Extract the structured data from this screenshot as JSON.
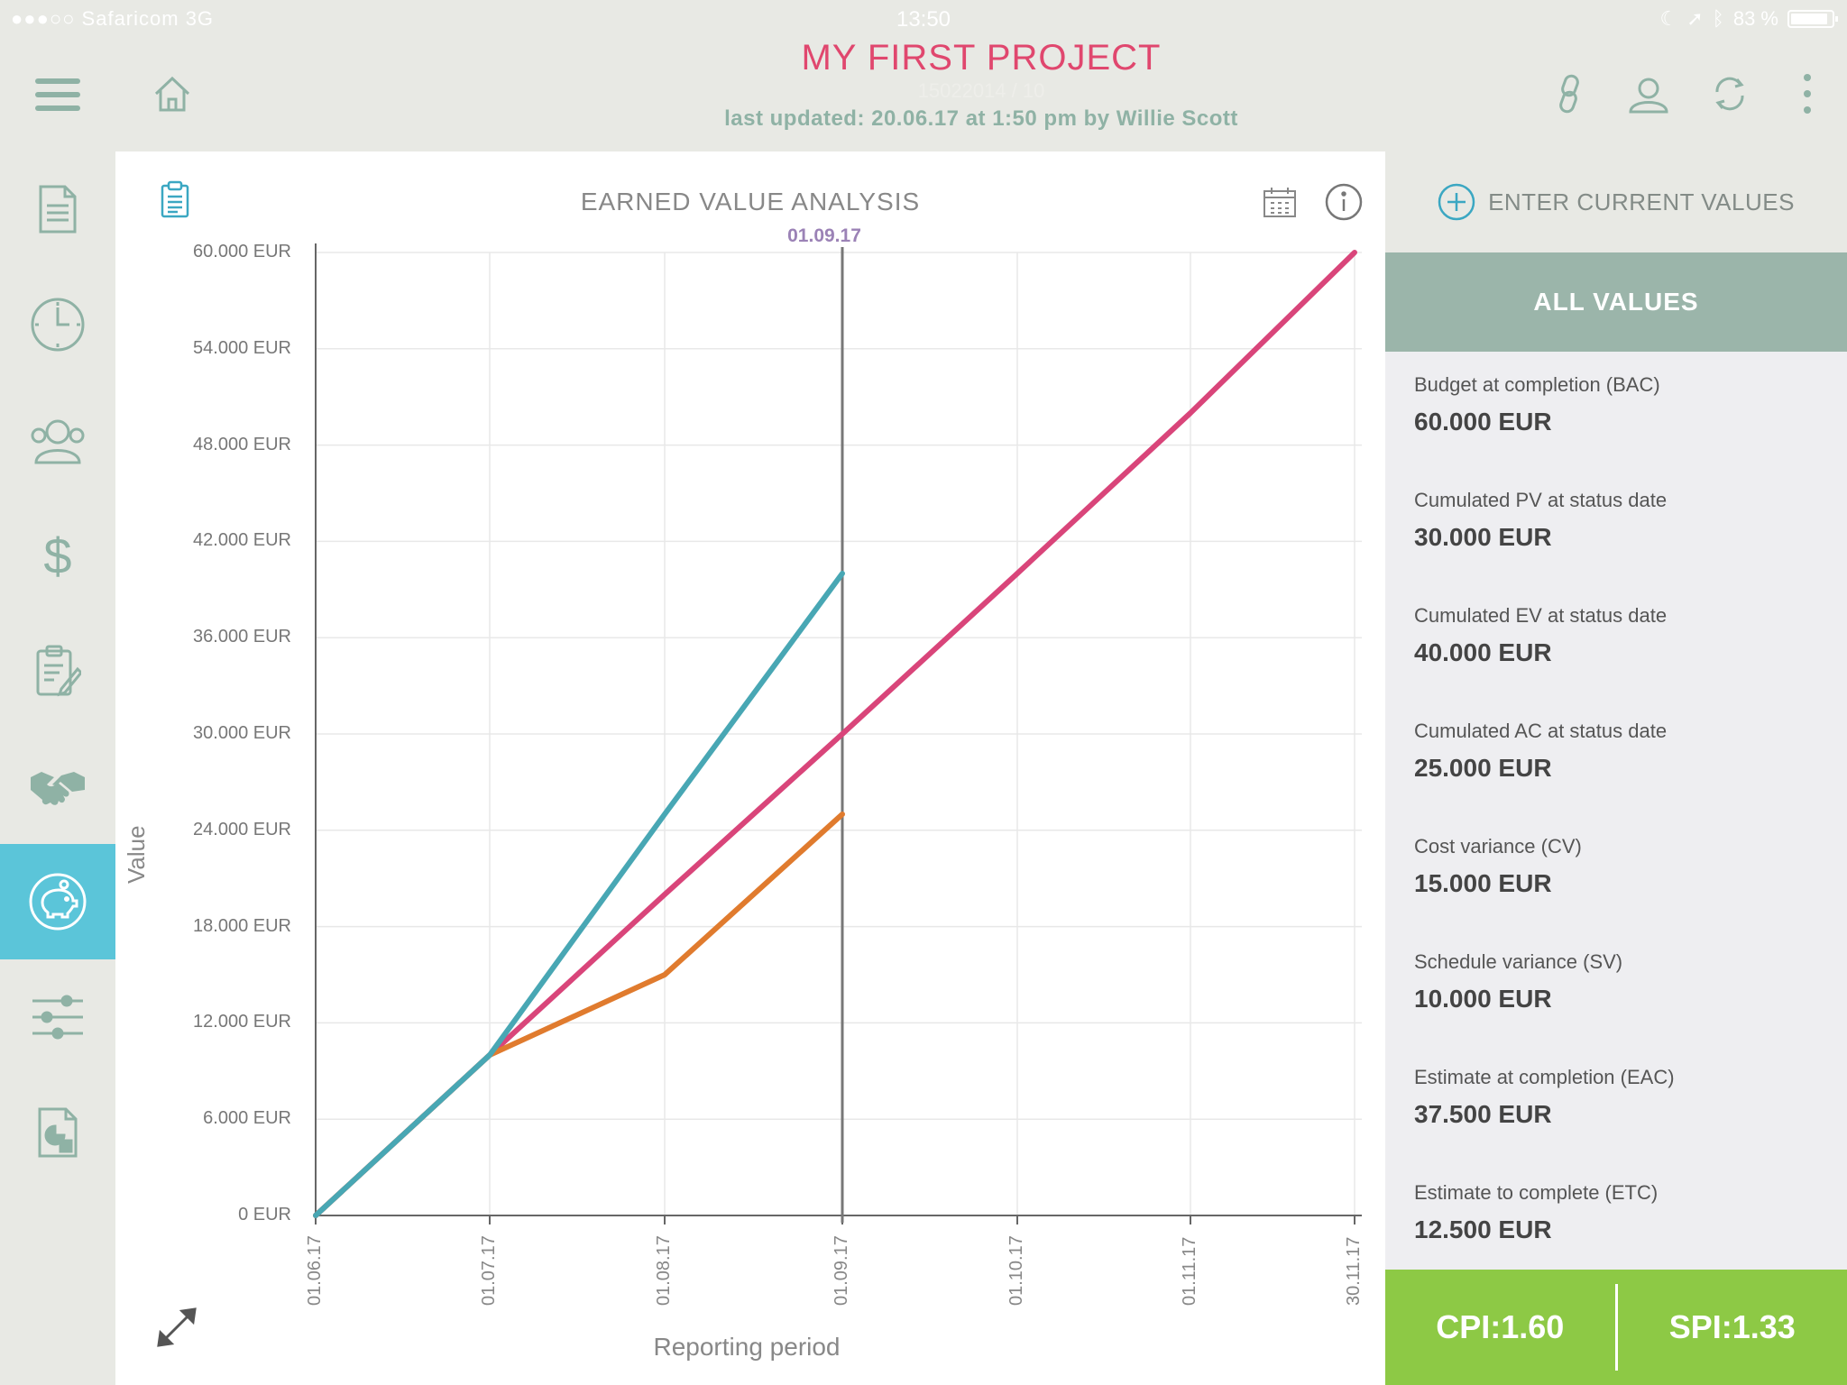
{
  "status_bar": {
    "carrier": "●●●○○ Safaricom  3G",
    "time": "13:50",
    "battery": "83 %"
  },
  "header": {
    "title": "MY FIRST PROJECT",
    "ghost_text": "15022014 / 10",
    "subtitle": "last updated: 20.06.17 at 1:50 pm by Willie Scott"
  },
  "chart_data": {
    "type": "line",
    "title": "EARNED VALUE ANALYSIS",
    "status_date": "01.09.17",
    "xlabel": "Reporting period",
    "ylabel": "Value",
    "ylim": [
      0,
      60000
    ],
    "x_ticks": [
      "01.06.17",
      "01.07.17",
      "01.08.17",
      "01.09.17",
      "01.10.17",
      "01.11.17",
      "30.11.17"
    ],
    "y_ticks": [
      "0 EUR",
      "6.000 EUR",
      "12.000 EUR",
      "18.000 EUR",
      "24.000 EUR",
      "30.000 EUR",
      "36.000 EUR",
      "42.000 EUR",
      "48.000 EUR",
      "54.000 EUR",
      "60.000 EUR"
    ],
    "grid": true,
    "series": [
      {
        "color": "#d9457a",
        "x": [
          "01.06.17",
          "01.07.17",
          "01.08.17",
          "01.09.17",
          "01.10.17",
          "01.11.17",
          "30.11.17"
        ],
        "values": [
          0,
          10000,
          20000,
          30000,
          40000,
          50000,
          60000
        ]
      },
      {
        "color": "#e07b2e",
        "x": [
          "01.06.17",
          "01.07.17",
          "01.08.17",
          "01.09.17"
        ],
        "values": [
          0,
          10000,
          15000,
          25000
        ]
      },
      {
        "color": "#48a7b4",
        "x": [
          "01.06.17",
          "01.07.17",
          "01.08.17",
          "01.09.17"
        ],
        "values": [
          0,
          10000,
          25000,
          40000
        ]
      }
    ]
  },
  "panel": {
    "enter_label": "ENTER CURRENT VALUES",
    "all_values_label": "ALL VALUES",
    "metrics": [
      {
        "label": "Budget at completion (BAC)",
        "value": "60.000 EUR"
      },
      {
        "label": "Cumulated PV at status date",
        "value": "30.000 EUR"
      },
      {
        "label": "Cumulated EV at status date",
        "value": "40.000 EUR"
      },
      {
        "label": "Cumulated AC at status date",
        "value": "25.000 EUR"
      },
      {
        "label": "Cost variance (CV)",
        "value": "15.000 EUR"
      },
      {
        "label": "Schedule variance (SV)",
        "value": "10.000 EUR"
      },
      {
        "label": "Estimate at completion (EAC)",
        "value": "37.500 EUR"
      },
      {
        "label": "Estimate to complete (ETC)",
        "value": "12.500 EUR"
      }
    ],
    "cpi": "CPI:1.60",
    "spi": "SPI:1.33"
  },
  "sidebar": {
    "items": [
      "document-icon",
      "clock-icon",
      "team-icon",
      "dollar-icon",
      "clipboard-edit-icon",
      "handshake-icon",
      "piggy-bank-icon",
      "sliders-icon",
      "report-icon"
    ],
    "active": "piggy-bank-icon"
  },
  "colors": {
    "accent": "#5bc5d9",
    "title": "#e0476e",
    "header_sub": "#8fb2a5",
    "all_values": "#9bb5aa",
    "kpi": "#8dc945"
  }
}
